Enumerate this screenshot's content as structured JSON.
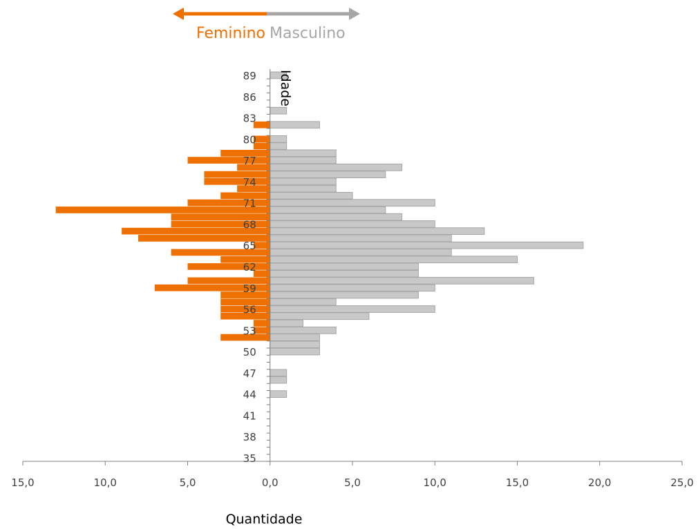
{
  "chart_data": {
    "type": "bar",
    "orientation": "horizontal",
    "title": "",
    "xlabel": "Quantidade",
    "ylabel": "Idade",
    "xlim": [
      -15,
      25
    ],
    "ylim": [
      35,
      90
    ],
    "x_ticks": [
      "15,0",
      "10,0",
      "5,0",
      "0,0",
      "5,0",
      "10,0",
      "15,0",
      "20,0",
      "25,0"
    ],
    "y_ticks": [
      "35",
      "38",
      "41",
      "44",
      "47",
      "50",
      "53",
      "56",
      "59",
      "62",
      "65",
      "68",
      "71",
      "74",
      "77",
      "80",
      "83",
      "86",
      "89"
    ],
    "legend": {
      "left_label": "Feminino",
      "right_label": "Masculino",
      "placement": "top-center"
    },
    "series": [
      {
        "name": "Feminino",
        "color": "#ED7000",
        "points": [
          {
            "age": 52,
            "value": 3
          },
          {
            "age": 53,
            "value": 1
          },
          {
            "age": 54,
            "value": 1
          },
          {
            "age": 55,
            "value": 3
          },
          {
            "age": 56,
            "value": 3
          },
          {
            "age": 57,
            "value": 3
          },
          {
            "age": 58,
            "value": 3
          },
          {
            "age": 59,
            "value": 7
          },
          {
            "age": 60,
            "value": 5
          },
          {
            "age": 61,
            "value": 1
          },
          {
            "age": 62,
            "value": 5
          },
          {
            "age": 63,
            "value": 3
          },
          {
            "age": 64,
            "value": 6
          },
          {
            "age": 65,
            "value": 1
          },
          {
            "age": 66,
            "value": 8
          },
          {
            "age": 67,
            "value": 9
          },
          {
            "age": 68,
            "value": 6
          },
          {
            "age": 69,
            "value": 6
          },
          {
            "age": 70,
            "value": 13
          },
          {
            "age": 71,
            "value": 5
          },
          {
            "age": 72,
            "value": 3
          },
          {
            "age": 73,
            "value": 2
          },
          {
            "age": 74,
            "value": 4
          },
          {
            "age": 75,
            "value": 4
          },
          {
            "age": 76,
            "value": 2
          },
          {
            "age": 77,
            "value": 5
          },
          {
            "age": 78,
            "value": 3
          },
          {
            "age": 79,
            "value": 1
          },
          {
            "age": 80,
            "value": 1
          },
          {
            "age": 82,
            "value": 1
          }
        ]
      },
      {
        "name": "Masculino",
        "color": "#C8C8C8",
        "points": [
          {
            "age": 44,
            "value": 1
          },
          {
            "age": 46,
            "value": 1
          },
          {
            "age": 47,
            "value": 1
          },
          {
            "age": 50,
            "value": 3
          },
          {
            "age": 51,
            "value": 3
          },
          {
            "age": 52,
            "value": 3
          },
          {
            "age": 53,
            "value": 4
          },
          {
            "age": 54,
            "value": 2
          },
          {
            "age": 55,
            "value": 6
          },
          {
            "age": 56,
            "value": 10
          },
          {
            "age": 57,
            "value": 4
          },
          {
            "age": 58,
            "value": 9
          },
          {
            "age": 59,
            "value": 10
          },
          {
            "age": 60,
            "value": 16
          },
          {
            "age": 61,
            "value": 9
          },
          {
            "age": 62,
            "value": 9
          },
          {
            "age": 63,
            "value": 15
          },
          {
            "age": 64,
            "value": 11
          },
          {
            "age": 65,
            "value": 19
          },
          {
            "age": 66,
            "value": 11
          },
          {
            "age": 67,
            "value": 13
          },
          {
            "age": 68,
            "value": 10
          },
          {
            "age": 69,
            "value": 8
          },
          {
            "age": 70,
            "value": 7
          },
          {
            "age": 71,
            "value": 10
          },
          {
            "age": 72,
            "value": 5
          },
          {
            "age": 73,
            "value": 4
          },
          {
            "age": 74,
            "value": 4
          },
          {
            "age": 75,
            "value": 7
          },
          {
            "age": 76,
            "value": 8
          },
          {
            "age": 77,
            "value": 4
          },
          {
            "age": 78,
            "value": 4
          },
          {
            "age": 79,
            "value": 1
          },
          {
            "age": 80,
            "value": 1
          },
          {
            "age": 82,
            "value": 3
          },
          {
            "age": 84,
            "value": 1
          },
          {
            "age": 89,
            "value": 1
          }
        ]
      }
    ],
    "grid": false
  }
}
